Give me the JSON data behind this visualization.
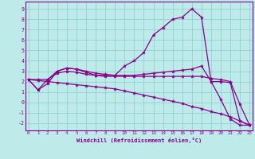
{
  "xlabel": "Windchill (Refroidissement éolien,°C)",
  "xlim": [
    -0.3,
    23.3
  ],
  "ylim": [
    -2.7,
    9.7
  ],
  "yticks": [
    -2,
    -1,
    0,
    1,
    2,
    3,
    4,
    5,
    6,
    7,
    8,
    9
  ],
  "xticks": [
    0,
    1,
    2,
    3,
    4,
    5,
    6,
    7,
    8,
    9,
    10,
    11,
    12,
    13,
    14,
    15,
    16,
    17,
    18,
    19,
    20,
    21,
    22,
    23
  ],
  "bg_color": "#beeaea",
  "line_color": "#880088",
  "grid_color": "#88cccc",
  "lines": [
    {
      "x": [
        0,
        1,
        2,
        3,
        4,
        5,
        6,
        7,
        8,
        9,
        10,
        11,
        12,
        13,
        14,
        15,
        16,
        17,
        18,
        19,
        20,
        21,
        22,
        23
      ],
      "y": [
        2.2,
        1.2,
        1.8,
        3.0,
        3.3,
        3.2,
        2.9,
        2.6,
        2.6,
        2.6,
        3.5,
        4.0,
        4.8,
        6.5,
        7.2,
        8.0,
        8.2,
        9.0,
        8.2,
        2.0,
        0.3,
        -1.6,
        -2.2,
        -2.2
      ]
    },
    {
      "x": [
        0,
        1,
        2,
        3,
        4,
        5,
        6,
        7,
        8,
        9,
        10,
        11,
        12,
        13,
        14,
        15,
        16,
        17,
        18,
        19,
        20,
        21,
        22,
        23
      ],
      "y": [
        2.2,
        1.2,
        2.2,
        3.0,
        3.3,
        3.2,
        3.0,
        2.8,
        2.7,
        2.6,
        2.6,
        2.6,
        2.7,
        2.8,
        2.9,
        3.0,
        3.1,
        3.2,
        3.5,
        2.0,
        2.0,
        1.9,
        -1.8,
        -2.2
      ]
    },
    {
      "x": [
        0,
        1,
        2,
        3,
        4,
        5,
        6,
        7,
        8,
        9,
        10,
        11,
        12,
        13,
        14,
        15,
        16,
        17,
        18,
        19,
        20,
        21,
        22,
        23
      ],
      "y": [
        2.2,
        2.2,
        2.2,
        2.8,
        3.0,
        2.9,
        2.7,
        2.6,
        2.5,
        2.5,
        2.5,
        2.5,
        2.5,
        2.5,
        2.5,
        2.5,
        2.5,
        2.5,
        2.5,
        2.3,
        2.2,
        2.0,
        -0.2,
        -2.2
      ]
    },
    {
      "x": [
        0,
        1,
        2,
        3,
        4,
        5,
        6,
        7,
        8,
        9,
        10,
        11,
        12,
        13,
        14,
        15,
        16,
        17,
        18,
        19,
        20,
        21,
        22,
        23
      ],
      "y": [
        2.2,
        2.1,
        2.0,
        1.9,
        1.8,
        1.7,
        1.6,
        1.5,
        1.4,
        1.3,
        1.1,
        0.9,
        0.7,
        0.5,
        0.3,
        0.1,
        -0.1,
        -0.4,
        -0.6,
        -0.9,
        -1.1,
        -1.4,
        -1.8,
        -2.2
      ]
    }
  ]
}
